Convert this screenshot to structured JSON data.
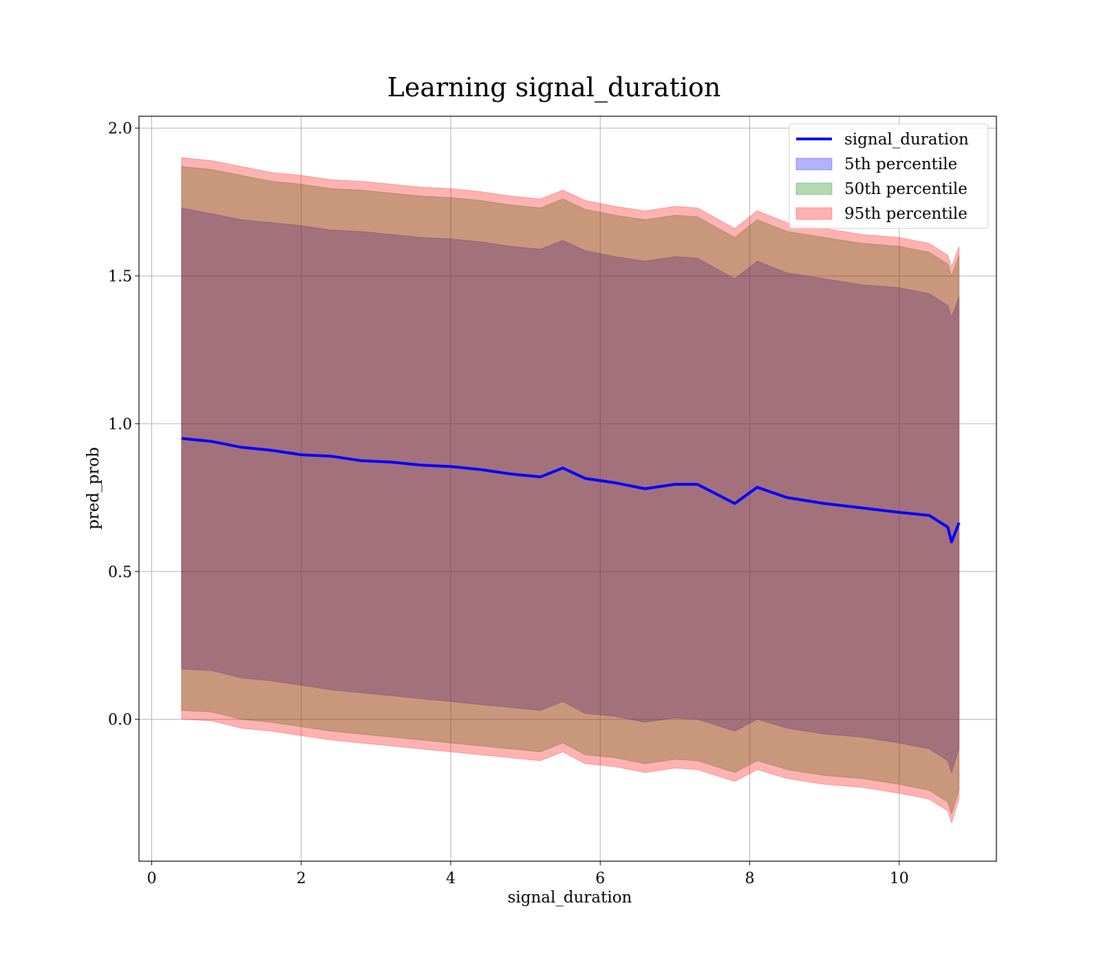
{
  "chart_data": {
    "type": "area",
    "title": "Learning signal_duration",
    "xlabel": "signal_duration",
    "ylabel": "pred_prob",
    "xlim": [
      -0.17,
      11.3
    ],
    "ylim": [
      -0.48,
      2.04
    ],
    "xticks": [
      0,
      2,
      4,
      6,
      8,
      10
    ],
    "xtick_labels": [
      "0",
      "2",
      "4",
      "6",
      "8",
      "10"
    ],
    "yticks": [
      0.0,
      0.5,
      1.0,
      1.5,
      2.0
    ],
    "ytick_labels": [
      "0.0",
      "0.5",
      "1.0",
      "1.5",
      "2.0"
    ],
    "grid": true,
    "legend_position": "top-right",
    "x": [
      0.4,
      0.8,
      1.2,
      1.6,
      2.0,
      2.4,
      2.8,
      3.2,
      3.6,
      4.0,
      4.4,
      4.8,
      5.2,
      5.5,
      5.8,
      6.2,
      6.6,
      7.0,
      7.3,
      7.8,
      8.1,
      8.5,
      9.0,
      9.5,
      10.0,
      10.4,
      10.65,
      10.7,
      10.8
    ],
    "series": [
      {
        "name": "signal_duration",
        "kind": "line",
        "color": "#0000ff",
        "values": [
          0.95,
          0.94,
          0.92,
          0.91,
          0.895,
          0.89,
          0.875,
          0.87,
          0.86,
          0.855,
          0.845,
          0.83,
          0.82,
          0.85,
          0.815,
          0.8,
          0.78,
          0.795,
          0.795,
          0.73,
          0.785,
          0.75,
          0.73,
          0.715,
          0.7,
          0.69,
          0.65,
          0.6,
          0.665
        ]
      },
      {
        "name": "5th percentile",
        "kind": "band",
        "color": "#0000ff",
        "upper": [
          1.73,
          1.71,
          1.69,
          1.68,
          1.67,
          1.655,
          1.65,
          1.64,
          1.63,
          1.625,
          1.615,
          1.6,
          1.59,
          1.62,
          1.585,
          1.565,
          1.55,
          1.565,
          1.56,
          1.49,
          1.55,
          1.51,
          1.49,
          1.47,
          1.46,
          1.44,
          1.4,
          1.36,
          1.43
        ],
        "lower": [
          0.17,
          0.165,
          0.14,
          0.13,
          0.115,
          0.1,
          0.09,
          0.08,
          0.07,
          0.06,
          0.05,
          0.04,
          0.03,
          0.06,
          0.02,
          0.01,
          -0.01,
          0.005,
          0.0,
          -0.04,
          0.0,
          -0.03,
          -0.05,
          -0.06,
          -0.08,
          -0.1,
          -0.14,
          -0.18,
          -0.1
        ]
      },
      {
        "name": "50th percentile",
        "kind": "band",
        "color": "#008000",
        "upper": [
          1.87,
          1.86,
          1.84,
          1.82,
          1.81,
          1.795,
          1.79,
          1.78,
          1.77,
          1.765,
          1.755,
          1.74,
          1.73,
          1.76,
          1.725,
          1.705,
          1.69,
          1.705,
          1.7,
          1.63,
          1.69,
          1.65,
          1.63,
          1.61,
          1.6,
          1.58,
          1.54,
          1.5,
          1.57
        ],
        "lower": [
          0.03,
          0.025,
          0.0,
          -0.01,
          -0.025,
          -0.04,
          -0.05,
          -0.06,
          -0.07,
          -0.08,
          -0.09,
          -0.1,
          -0.11,
          -0.08,
          -0.12,
          -0.13,
          -0.15,
          -0.135,
          -0.14,
          -0.18,
          -0.14,
          -0.17,
          -0.19,
          -0.2,
          -0.22,
          -0.24,
          -0.28,
          -0.32,
          -0.24
        ]
      },
      {
        "name": "95th percentile",
        "kind": "band",
        "color": "#ff0000",
        "upper": [
          1.9,
          1.89,
          1.87,
          1.85,
          1.84,
          1.825,
          1.82,
          1.81,
          1.8,
          1.795,
          1.785,
          1.77,
          1.76,
          1.79,
          1.755,
          1.735,
          1.72,
          1.735,
          1.73,
          1.66,
          1.72,
          1.68,
          1.66,
          1.64,
          1.63,
          1.61,
          1.57,
          1.53,
          1.6
        ],
        "lower": [
          0.0,
          -0.005,
          -0.03,
          -0.04,
          -0.055,
          -0.07,
          -0.08,
          -0.09,
          -0.1,
          -0.11,
          -0.12,
          -0.13,
          -0.14,
          -0.11,
          -0.15,
          -0.16,
          -0.18,
          -0.165,
          -0.17,
          -0.21,
          -0.17,
          -0.2,
          -0.22,
          -0.23,
          -0.25,
          -0.27,
          -0.31,
          -0.35,
          -0.27
        ]
      }
    ]
  }
}
